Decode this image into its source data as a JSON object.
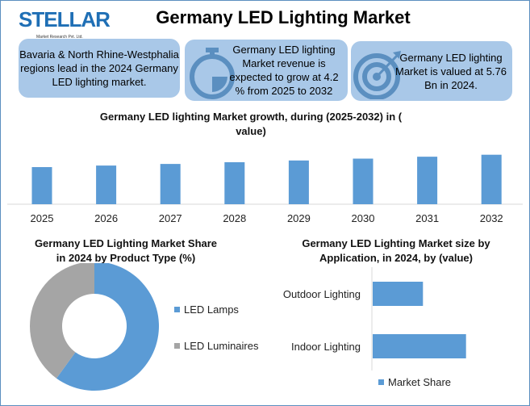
{
  "logo": {
    "name": "STELLAR",
    "sub": "Market Research Pvt. Ltd."
  },
  "title": "Germany LED Lighting Market",
  "cards": [
    {
      "text": "Bavaria & North Rhine-Westphalia regions lead in the 2024 Germany LED lighting market.",
      "icon": "none"
    },
    {
      "text": "Germany LED lighting Market revenue is expected to grow at 4.2 % from 2025 to 2032",
      "icon": "stopwatch-icon"
    },
    {
      "text": "Germany LED lighting Market is valued at 5.76 Bn in 2024.",
      "icon": "target-icon"
    }
  ],
  "colors": {
    "bar": "#5b9bd5",
    "card": "#a9c8e8",
    "grey": "#a5a5a5"
  },
  "chart_data": [
    {
      "type": "bar",
      "title": "Germany LED lighting Market growth, during (2025-2032) in ( value)",
      "categories": [
        "2025",
        "2026",
        "2027",
        "2028",
        "2029",
        "2030",
        "2031",
        "2032"
      ],
      "values": [
        6.0,
        6.25,
        6.51,
        6.79,
        7.07,
        7.37,
        7.68,
        8.0
      ],
      "ylim": [
        0,
        10.7
      ],
      "grid": false
    },
    {
      "type": "pie",
      "title": "Germany LED Lighting Market Share in 2024 by Product Type (%)",
      "labels": [
        "LED Lamps",
        "LED Luminaires"
      ],
      "values": [
        60,
        40
      ],
      "colors": [
        "#5b9bd5",
        "#a5a5a5"
      ],
      "donut": true,
      "legend": "right"
    },
    {
      "type": "bar",
      "orientation": "horizontal",
      "title": "Germany LED Lighting Market size by Application, in 2024, by (value)",
      "categories": [
        "Outdoor Lighting",
        "Indoor Lighting"
      ],
      "series": [
        {
          "name": "Market Share",
          "values": [
            35,
            65
          ]
        }
      ],
      "xlim": [
        0,
        100
      ],
      "legend": "bottom"
    }
  ]
}
